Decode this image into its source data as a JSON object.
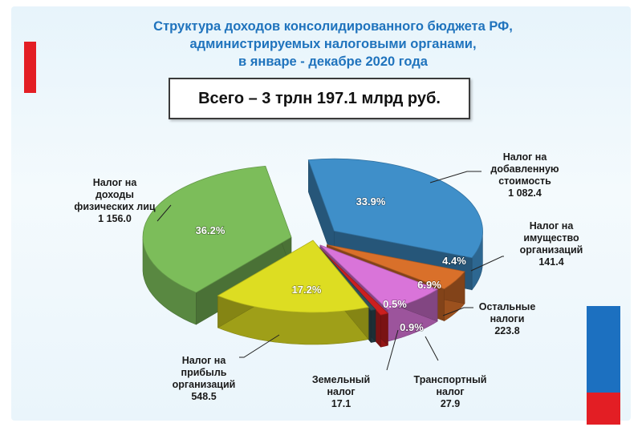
{
  "title_lines": [
    "Структура доходов консолидированного бюджета РФ,",
    "администрируемых налоговыми органами,",
    "в январе - декабре 2020 года"
  ],
  "total": "Всего – 3 трлн 197.1 млрд руб.",
  "colors": {
    "ndfl": "#7cbd5a",
    "nds": "#3f8fc9",
    "property": "#d9702a",
    "other": "#d974d9",
    "transport": "#cc1f1f",
    "land": "#2f4f5a",
    "profit": "#dddd22"
  },
  "chart_data": {
    "type": "pie",
    "title": "Структура доходов консолидированного бюджета РФ, администрируемых налоговыми органами, в январе - декабре 2020 года",
    "total_label": "Всего – 3 трлн 197.1 млрд руб.",
    "slices": [
      {
        "key": "nds",
        "label_lines": [
          "Налог на",
          "добавленную",
          "стоимость",
          "1 082.4"
        ],
        "value": 1082.4,
        "percent": "33.9%"
      },
      {
        "key": "property",
        "label_lines": [
          "Налог на",
          "имущество",
          "организаций",
          "141.4"
        ],
        "value": 141.4,
        "percent": "4.4%"
      },
      {
        "key": "other",
        "label_lines": [
          "Остальные",
          "налоги",
          "223.8"
        ],
        "value": 223.8,
        "percent": "6.9%"
      },
      {
        "key": "transport",
        "label_lines": [
          "Транспортный",
          "налог",
          "27.9"
        ],
        "value": 27.9,
        "percent": "0.9%"
      },
      {
        "key": "land",
        "label_lines": [
          "Земельный",
          "налог",
          "17.1"
        ],
        "value": 17.1,
        "percent": "0.5%"
      },
      {
        "key": "profit",
        "label_lines": [
          "Налог на",
          "прибыль",
          "организаций",
          "548.5"
        ],
        "value": 548.5,
        "percent": "17.2%"
      },
      {
        "key": "ndfl",
        "label_lines": [
          "Налог на",
          "доходы",
          "физических лиц",
          "1 156.0"
        ],
        "value": 1156.0,
        "percent": "36.2%"
      }
    ]
  }
}
